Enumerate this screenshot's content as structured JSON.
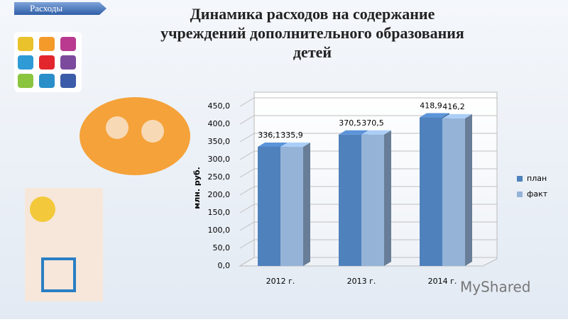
{
  "tab": "Расходы",
  "watermark": "MyShared",
  "chart_data": {
    "type": "bar3d",
    "title": [
      "Динамика расходов на содержание",
      "учреждений дополнительного образования",
      "детей"
    ],
    "y_label": "млн. руб.",
    "categories": [
      "2012 г.",
      "2013 г.",
      "2014 г."
    ],
    "series": [
      {
        "name": "план",
        "color": "#4f81bd",
        "values": [
          336.1,
          370.5,
          418.9
        ],
        "value_labels": [
          "336,1",
          "370,5",
          "418,9"
        ]
      },
      {
        "name": "факт",
        "color": "#95b3d7",
        "values": [
          335.9,
          370.5,
          416.2
        ],
        "value_labels": [
          "335,9",
          "370,5",
          "416,2"
        ]
      }
    ],
    "ylim": [
      0,
      450
    ],
    "yticks": [
      {
        "value": 0,
        "label": "0,0"
      },
      {
        "value": 50,
        "label": "50,0"
      },
      {
        "value": 100,
        "label": "100,0"
      },
      {
        "value": 150,
        "label": "150,0"
      },
      {
        "value": 200,
        "label": "200,0"
      },
      {
        "value": 250,
        "label": "250,0"
      },
      {
        "value": 300,
        "label": "300,0"
      },
      {
        "value": 350,
        "label": "350,0"
      },
      {
        "value": 400,
        "label": "400,0"
      },
      {
        "value": 450,
        "label": "450,0"
      }
    ],
    "grid": true,
    "legend": "right"
  }
}
